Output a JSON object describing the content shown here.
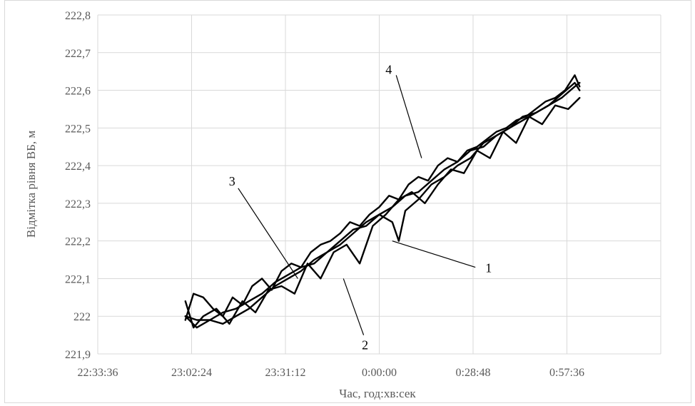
{
  "colors": {
    "grid": "#d9d9d9",
    "series": "#000000",
    "axis_text": "#595959",
    "border": "#d9d9d9"
  },
  "chart_data": {
    "type": "line",
    "title": "",
    "xlabel": "Час, год:хв:сек",
    "ylabel": "Відмітка  рівня ВБ, м",
    "x_ticks": [
      "22:33:36",
      "23:02:24",
      "23:31:12",
      "0:00:00",
      "0:28:48",
      "0:57:36"
    ],
    "y_ticks": [
      "221,9",
      "222",
      "222,1",
      "222,2",
      "222,3",
      "222,4",
      "222,5",
      "222,6",
      "222,7",
      "222,8"
    ],
    "x_unit": "minutes relative to 0:00:00",
    "xlim": [
      -86.4,
      86.4
    ],
    "ylim": [
      221.9,
      222.8
    ],
    "grid": true,
    "legend": "none",
    "series": [
      {
        "x": [
          -59.5,
          -56,
          -52,
          -48,
          -44,
          -40,
          -36,
          -32,
          -28,
          -24,
          -20,
          -16,
          -12,
          -8,
          -4,
          0,
          4,
          6,
          8,
          12,
          16,
          20,
          24,
          28,
          32,
          36,
          40,
          44,
          48,
          52,
          56,
          60,
          61.5
        ],
        "y": [
          222.0,
          221.99,
          221.99,
          221.98,
          222.0,
          222.02,
          222.05,
          222.08,
          222.1,
          222.12,
          222.15,
          222.17,
          222.19,
          222.22,
          222.25,
          222.27,
          222.25,
          222.2,
          222.28,
          222.31,
          222.35,
          222.37,
          222.4,
          222.42,
          222.46,
          222.48,
          222.5,
          222.52,
          222.54,
          222.56,
          222.59,
          222.62,
          222.6
        ]
      },
      {
        "x": [
          -59.5,
          -56,
          -52,
          -48,
          -44,
          -40,
          -36,
          -32,
          -28,
          -24,
          -20,
          -16,
          -12,
          -8,
          -4,
          0,
          4,
          8,
          12,
          16,
          20,
          24,
          28,
          32,
          36,
          40,
          44,
          48,
          52,
          56,
          60,
          61.5
        ],
        "y": [
          222.0,
          221.97,
          221.99,
          222.01,
          222.02,
          222.04,
          222.06,
          222.09,
          222.11,
          222.13,
          222.14,
          222.17,
          222.2,
          222.23,
          222.24,
          222.27,
          222.29,
          222.32,
          222.33,
          222.36,
          222.39,
          222.41,
          222.44,
          222.45,
          222.48,
          222.5,
          222.53,
          222.54,
          222.56,
          222.58,
          222.61,
          222.62
        ]
      },
      {
        "x": [
          -59.5,
          -57,
          -54,
          -50,
          -46,
          -42,
          -38,
          -34,
          -30,
          -26,
          -22,
          -18,
          -14,
          -10,
          -6,
          -2,
          2,
          6,
          10,
          14,
          18,
          22,
          26,
          30,
          34,
          38,
          42,
          46,
          50,
          54,
          58,
          61.5
        ],
        "y": [
          222.04,
          221.97,
          222.0,
          222.02,
          221.98,
          222.04,
          222.01,
          222.07,
          222.08,
          222.06,
          222.14,
          222.1,
          222.17,
          222.19,
          222.14,
          222.24,
          222.27,
          222.31,
          222.33,
          222.3,
          222.35,
          222.39,
          222.38,
          222.44,
          222.42,
          222.49,
          222.46,
          222.53,
          222.51,
          222.56,
          222.55,
          222.58
        ]
      },
      {
        "x": [
          -59.5,
          -57,
          -54,
          -51,
          -48,
          -45,
          -42,
          -39,
          -36,
          -33,
          -30,
          -27,
          -24,
          -21,
          -18,
          -15,
          -12,
          -9,
          -6,
          -3,
          0,
          3,
          6,
          9,
          12,
          15,
          18,
          21,
          24,
          27,
          30,
          33,
          36,
          39,
          42,
          45,
          48,
          51,
          54,
          57,
          60,
          61.5
        ],
        "y": [
          221.99,
          222.06,
          222.05,
          222.02,
          222.0,
          222.05,
          222.03,
          222.08,
          222.1,
          222.07,
          222.12,
          222.14,
          222.13,
          222.17,
          222.19,
          222.2,
          222.22,
          222.25,
          222.24,
          222.27,
          222.29,
          222.32,
          222.31,
          222.35,
          222.37,
          222.36,
          222.4,
          222.42,
          222.41,
          222.44,
          222.45,
          222.47,
          222.49,
          222.5,
          222.52,
          222.53,
          222.55,
          222.57,
          222.58,
          222.6,
          222.64,
          222.61
        ]
      }
    ],
    "annotations": [
      {
        "text": "1",
        "x_label": 29.5,
        "y_label": 222.13,
        "x_point": 4.0,
        "y_point": 222.2
      },
      {
        "text": "2",
        "x_label": -4.8,
        "y_label": 221.95,
        "x_point": -11.0,
        "y_point": 222.1
      },
      {
        "text": "3",
        "x_label": -43.3,
        "y_label": 222.34,
        "x_point": -25.0,
        "y_point": 222.1
      },
      {
        "text": "4",
        "x_label": 5.2,
        "y_label": 222.64,
        "x_point": 13.0,
        "y_point": 222.42
      }
    ]
  }
}
